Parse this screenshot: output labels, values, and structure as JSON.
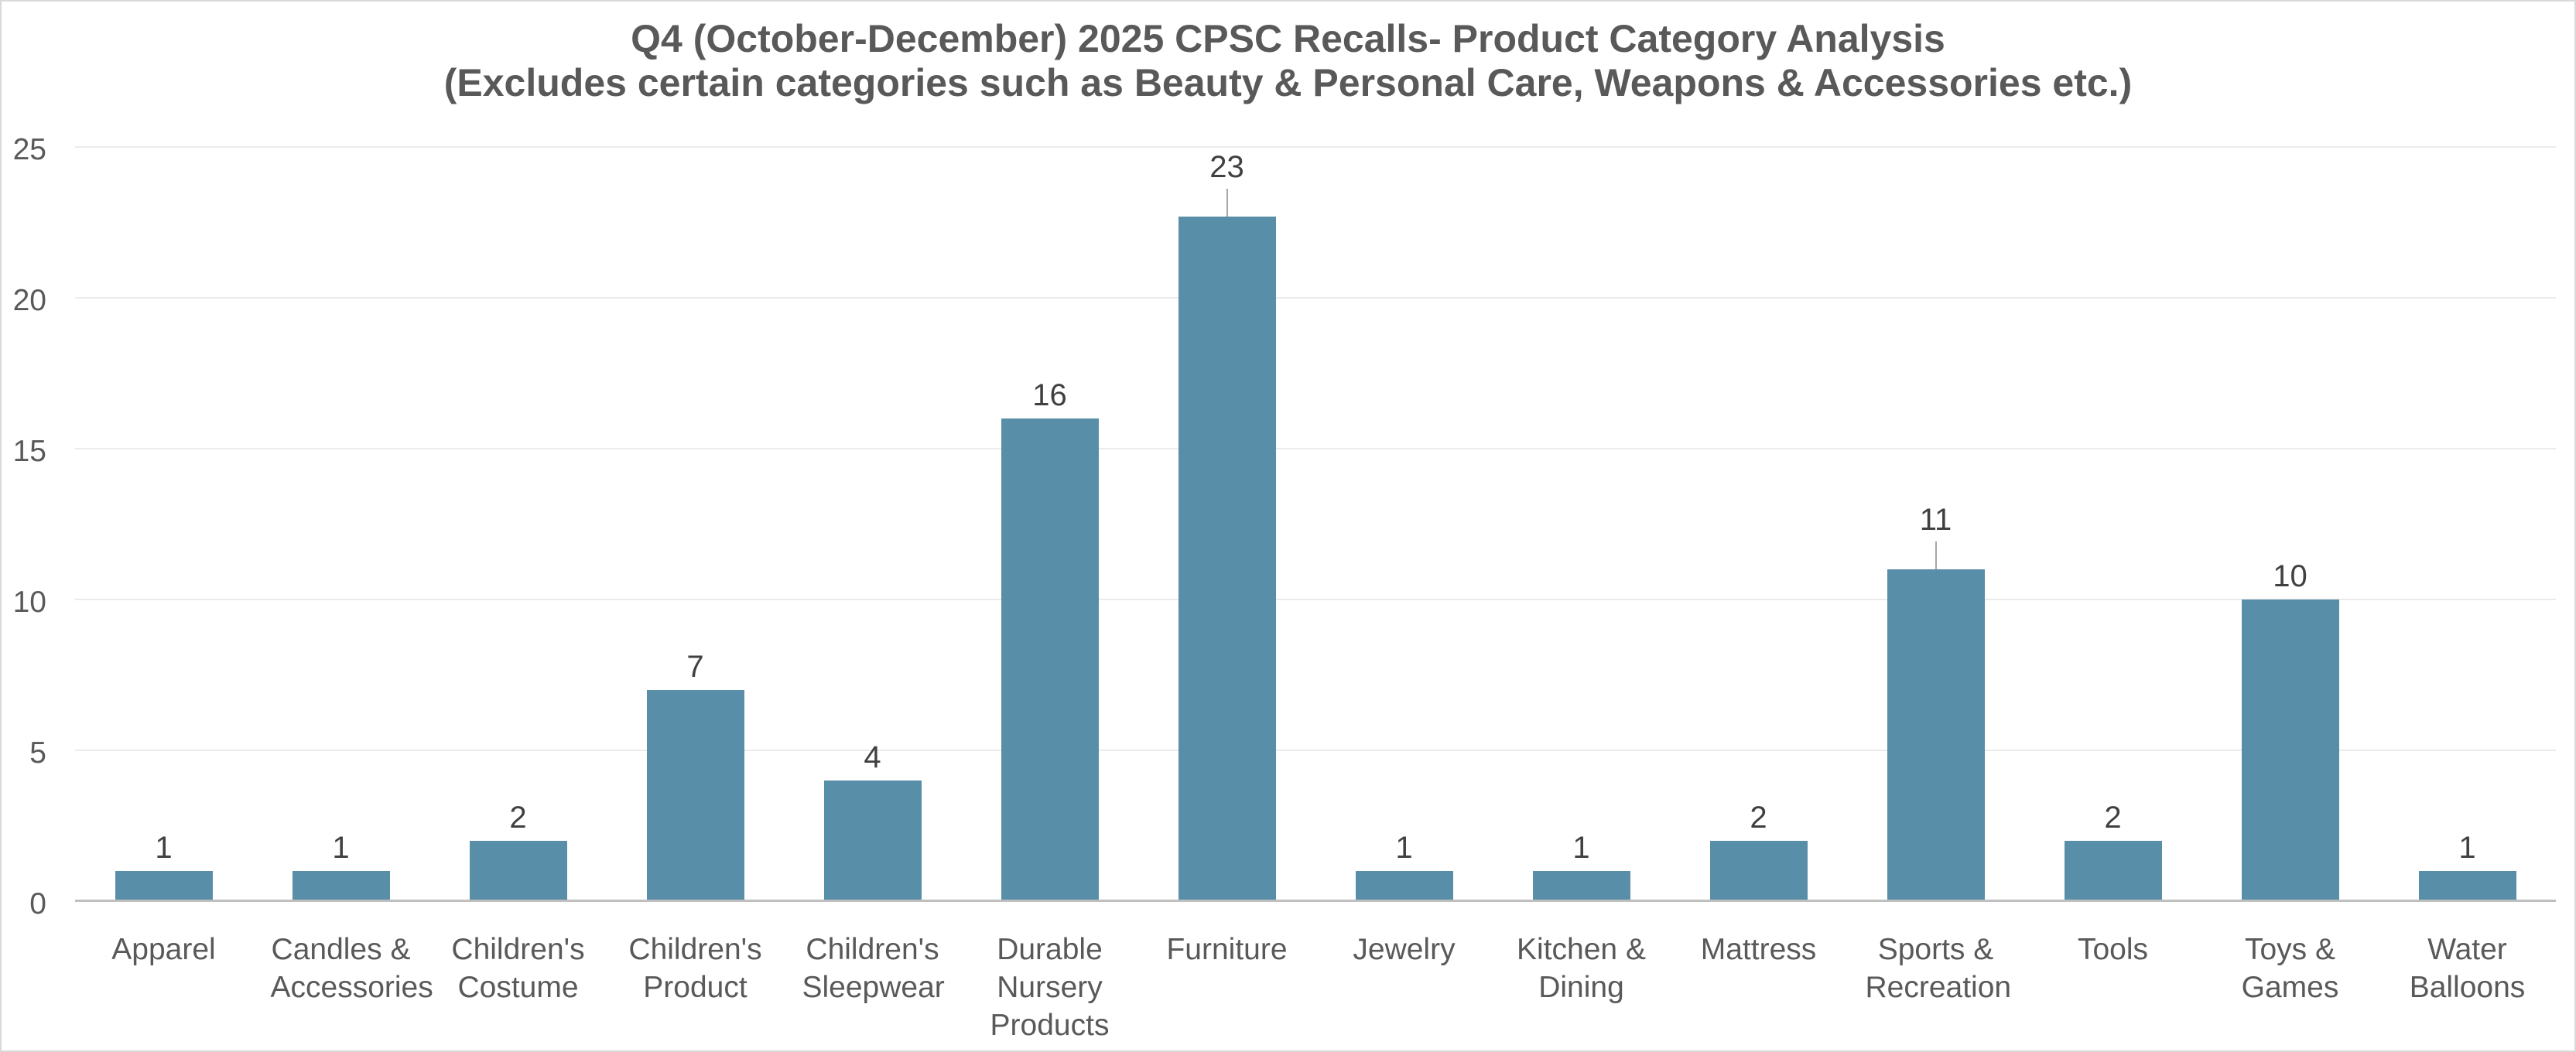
{
  "title": {
    "line1": "Q4 (October-December) 2025 CPSC Recalls- Product Category Analysis",
    "line2": "(Excludes certain categories such as Beauty & Personal Care, Weapons & Accessories etc.)"
  },
  "colors": {
    "bar": "#598ea8",
    "title_text": "#595959",
    "axis_text": "#595959",
    "data_label_text": "#404040",
    "gridline": "#ebebeb",
    "baseline": "#bfbfbf",
    "leader_line": "#a6a6a6",
    "canvas_border": "#d9d9d9",
    "background": "#ffffff"
  },
  "chart_data": {
    "type": "bar",
    "title": "Q4 (October-December) 2025 CPSC Recalls- Product Category Analysis (Excludes certain categories such as Beauty & Personal Care, Weapons & Accessories etc.)",
    "categories": [
      "Apparel",
      "Candles & Accessories",
      "Children's Costume",
      "Children's Product",
      "Children's Sleepwear",
      "Durable Nursery Products",
      "Furniture",
      "Jewelry",
      "Kitchen & Dining",
      "Mattress",
      "Sports & Recreation",
      "Tools",
      "Toys & Games",
      "Water Balloons"
    ],
    "values": [
      1,
      1,
      2,
      7,
      4,
      16,
      23,
      1,
      1,
      2,
      11,
      2,
      10,
      1
    ],
    "xlabel": "",
    "ylabel": "",
    "ylim": [
      0,
      25
    ],
    "yticks": [
      0,
      5,
      10,
      15,
      20,
      25
    ],
    "grid": "horizontal-only",
    "legend": "none",
    "data_labels": "above-bars",
    "label_leader_lines": [
      "Furniture",
      "Sports & Recreation"
    ]
  }
}
